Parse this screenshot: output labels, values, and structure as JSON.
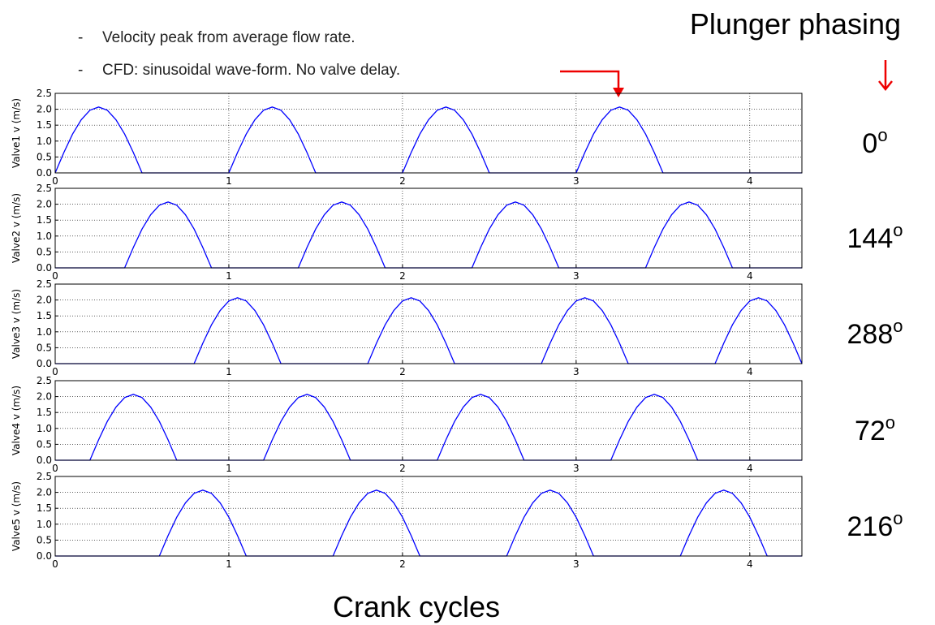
{
  "notes": [
    "Velocity peak from average flow rate.",
    "CFD: sinusoidal wave-form. No valve delay."
  ],
  "side_title": "Plunger phasing",
  "x_label": "Crank cycles",
  "chart_data": [
    {
      "type": "line",
      "y_label": "Valve1 v (m/s)",
      "phase": "0",
      "phase_unit": "o",
      "color": "#0000ff",
      "grid": true,
      "xlim": [
        0,
        4.3
      ],
      "ylim": [
        0,
        2.5
      ],
      "xticks": [
        0,
        1,
        2,
        3,
        4
      ],
      "yticks": [
        {
          "value": 0,
          "label": "0.0"
        },
        0.5,
        {
          "value": 1,
          "label": "1.0"
        },
        1.5,
        {
          "value": 2,
          "label": "2.0"
        },
        2.5
      ],
      "x": [
        0,
        0.05,
        0.1,
        0.15,
        0.2,
        0.25,
        0.3,
        0.35,
        0.4,
        0.45,
        0.5,
        0.55,
        0.6,
        0.65,
        0.7,
        0.75,
        0.8,
        0.85,
        0.9,
        0.95,
        1,
        1.05,
        1.1,
        1.15,
        1.2,
        1.25,
        1.3,
        1.35,
        1.4,
        1.45,
        1.5,
        1.55,
        1.6,
        1.65,
        1.7,
        1.75,
        1.8,
        1.85,
        1.9,
        1.95,
        2,
        2.05,
        2.1,
        2.15,
        2.2,
        2.25,
        2.3,
        2.35,
        2.4,
        2.45,
        2.5,
        2.55,
        2.6,
        2.65,
        2.7,
        2.75,
        2.8,
        2.85,
        2.9,
        2.95,
        3,
        3.05,
        3.1,
        3.15,
        3.2,
        3.25,
        3.3,
        3.35,
        3.4,
        3.45,
        3.5,
        3.55,
        3.6,
        3.65,
        3.7,
        3.75,
        3.8,
        3.85,
        3.9,
        3.95,
        4,
        4.05,
        4.1,
        4.15,
        4.2,
        4.25,
        4.3
      ],
      "values": [
        0,
        0.64,
        1.22,
        1.67,
        1.97,
        2.07,
        1.97,
        1.67,
        1.22,
        0.64,
        0,
        0,
        0,
        0,
        0,
        0,
        0,
        0,
        0,
        0,
        0,
        0.64,
        1.22,
        1.67,
        1.97,
        2.07,
        1.97,
        1.67,
        1.22,
        0.64,
        0,
        0,
        0,
        0,
        0,
        0,
        0,
        0,
        0,
        0,
        0,
        0.64,
        1.22,
        1.67,
        1.97,
        2.07,
        1.97,
        1.67,
        1.22,
        0.64,
        0,
        0,
        0,
        0,
        0,
        0,
        0,
        0,
        0,
        0,
        0,
        0.64,
        1.22,
        1.67,
        1.97,
        2.07,
        1.97,
        1.67,
        1.22,
        0.64,
        0,
        0,
        0,
        0,
        0,
        0,
        0,
        0,
        0,
        0,
        0,
        0,
        0,
        0,
        0,
        0,
        0
      ]
    },
    {
      "type": "line",
      "y_label": "Valve2 v (m/s)",
      "phase": "144",
      "phase_unit": "o",
      "color": "#0000ff",
      "grid": true,
      "xlim": [
        0,
        4.3
      ],
      "ylim": [
        0,
        2.5
      ],
      "xticks": [
        0,
        1,
        2,
        3,
        4
      ],
      "yticks": [
        {
          "value": 0,
          "label": "0.0"
        },
        0.5,
        {
          "value": 1,
          "label": "1.0"
        },
        1.5,
        {
          "value": 2,
          "label": "2.0"
        },
        2.5
      ],
      "x": [
        0,
        0.05,
        0.1,
        0.15,
        0.2,
        0.25,
        0.3,
        0.35,
        0.4,
        0.45,
        0.5,
        0.55,
        0.6,
        0.65,
        0.7,
        0.75,
        0.8,
        0.85,
        0.9,
        0.95,
        1,
        1.05,
        1.1,
        1.15,
        1.2,
        1.25,
        1.3,
        1.35,
        1.4,
        1.45,
        1.5,
        1.55,
        1.6,
        1.65,
        1.7,
        1.75,
        1.8,
        1.85,
        1.9,
        1.95,
        2,
        2.05,
        2.1,
        2.15,
        2.2,
        2.25,
        2.3,
        2.35,
        2.4,
        2.45,
        2.5,
        2.55,
        2.6,
        2.65,
        2.7,
        2.75,
        2.8,
        2.85,
        2.9,
        2.95,
        3,
        3.05,
        3.1,
        3.15,
        3.2,
        3.25,
        3.3,
        3.35,
        3.4,
        3.45,
        3.5,
        3.55,
        3.6,
        3.65,
        3.7,
        3.75,
        3.8,
        3.85,
        3.9,
        3.95,
        4,
        4.05,
        4.1,
        4.15,
        4.2,
        4.25,
        4.3
      ],
      "values": [
        0,
        0,
        0,
        0,
        0,
        0,
        0,
        0,
        0,
        0.64,
        1.22,
        1.67,
        1.97,
        2.07,
        1.97,
        1.67,
        1.22,
        0.64,
        0,
        0,
        0,
        0,
        0,
        0,
        0,
        0,
        0,
        0,
        0,
        0.64,
        1.22,
        1.67,
        1.97,
        2.07,
        1.97,
        1.67,
        1.22,
        0.64,
        0,
        0,
        0,
        0,
        0,
        0,
        0,
        0,
        0,
        0,
        0,
        0.64,
        1.22,
        1.67,
        1.97,
        2.07,
        1.97,
        1.67,
        1.22,
        0.64,
        0,
        0,
        0,
        0,
        0,
        0,
        0,
        0,
        0,
        0,
        0,
        0.64,
        1.22,
        1.67,
        1.97,
        2.07,
        1.97,
        1.67,
        1.22,
        0.64,
        0,
        0,
        0,
        0,
        0,
        0,
        0,
        0,
        0
      ]
    },
    {
      "type": "line",
      "y_label": "Valve3 v (m/s)",
      "phase": "288",
      "phase_unit": "o",
      "color": "#0000ff",
      "grid": true,
      "xlim": [
        0,
        4.3
      ],
      "ylim": [
        0,
        2.5
      ],
      "xticks": [
        0,
        1,
        2,
        3,
        4
      ],
      "yticks": [
        {
          "value": 0,
          "label": "0.0"
        },
        0.5,
        {
          "value": 1,
          "label": "1.0"
        },
        1.5,
        {
          "value": 2,
          "label": "2.0"
        },
        2.5
      ],
      "x": [
        0,
        0.05,
        0.1,
        0.15,
        0.2,
        0.25,
        0.3,
        0.35,
        0.4,
        0.45,
        0.5,
        0.55,
        0.6,
        0.65,
        0.7,
        0.75,
        0.8,
        0.85,
        0.9,
        0.95,
        1,
        1.05,
        1.1,
        1.15,
        1.2,
        1.25,
        1.3,
        1.35,
        1.4,
        1.45,
        1.5,
        1.55,
        1.6,
        1.65,
        1.7,
        1.75,
        1.8,
        1.85,
        1.9,
        1.95,
        2,
        2.05,
        2.1,
        2.15,
        2.2,
        2.25,
        2.3,
        2.35,
        2.4,
        2.45,
        2.5,
        2.55,
        2.6,
        2.65,
        2.7,
        2.75,
        2.8,
        2.85,
        2.9,
        2.95,
        3,
        3.05,
        3.1,
        3.15,
        3.2,
        3.25,
        3.3,
        3.35,
        3.4,
        3.45,
        3.5,
        3.55,
        3.6,
        3.65,
        3.7,
        3.75,
        3.8,
        3.85,
        3.9,
        3.95,
        4,
        4.05,
        4.1,
        4.15,
        4.2,
        4.25,
        4.3
      ],
      "values": [
        0,
        0,
        0,
        0,
        0,
        0,
        0,
        0,
        0,
        0,
        0,
        0,
        0,
        0,
        0,
        0,
        0,
        0.64,
        1.22,
        1.67,
        1.97,
        2.07,
        1.97,
        1.67,
        1.22,
        0.64,
        0,
        0,
        0,
        0,
        0,
        0,
        0,
        0,
        0,
        0,
        0,
        0.64,
        1.22,
        1.67,
        1.97,
        2.07,
        1.97,
        1.67,
        1.22,
        0.64,
        0,
        0,
        0,
        0,
        0,
        0,
        0,
        0,
        0,
        0,
        0,
        0.64,
        1.22,
        1.67,
        1.97,
        2.07,
        1.97,
        1.67,
        1.22,
        0.64,
        0,
        0,
        0,
        0,
        0,
        0,
        0,
        0,
        0,
        0,
        0,
        0.64,
        1.22,
        1.67,
        1.97,
        2.07,
        1.97,
        1.67,
        1.22,
        0.64,
        0
      ]
    },
    {
      "type": "line",
      "y_label": "Valve4 v (m/s)",
      "phase": "72",
      "phase_unit": "o",
      "color": "#0000ff",
      "grid": true,
      "xlim": [
        0,
        4.3
      ],
      "ylim": [
        0,
        2.5
      ],
      "xticks": [
        0,
        1,
        2,
        3,
        4
      ],
      "yticks": [
        {
          "value": 0,
          "label": "0.0"
        },
        0.5,
        {
          "value": 1,
          "label": "1.0"
        },
        1.5,
        {
          "value": 2,
          "label": "2.0"
        },
        2.5
      ],
      "x": [
        0,
        0.05,
        0.1,
        0.15,
        0.2,
        0.25,
        0.3,
        0.35,
        0.4,
        0.45,
        0.5,
        0.55,
        0.6,
        0.65,
        0.7,
        0.75,
        0.8,
        0.85,
        0.9,
        0.95,
        1,
        1.05,
        1.1,
        1.15,
        1.2,
        1.25,
        1.3,
        1.35,
        1.4,
        1.45,
        1.5,
        1.55,
        1.6,
        1.65,
        1.7,
        1.75,
        1.8,
        1.85,
        1.9,
        1.95,
        2,
        2.05,
        2.1,
        2.15,
        2.2,
        2.25,
        2.3,
        2.35,
        2.4,
        2.45,
        2.5,
        2.55,
        2.6,
        2.65,
        2.7,
        2.75,
        2.8,
        2.85,
        2.9,
        2.95,
        3,
        3.05,
        3.1,
        3.15,
        3.2,
        3.25,
        3.3,
        3.35,
        3.4,
        3.45,
        3.5,
        3.55,
        3.6,
        3.65,
        3.7,
        3.75,
        3.8,
        3.85,
        3.9,
        3.95,
        4,
        4.05,
        4.1,
        4.15,
        4.2,
        4.25,
        4.3
      ],
      "values": [
        0,
        0,
        0,
        0,
        0,
        0.64,
        1.22,
        1.67,
        1.97,
        2.07,
        1.97,
        1.67,
        1.22,
        0.64,
        0,
        0,
        0,
        0,
        0,
        0,
        0,
        0,
        0,
        0,
        0,
        0.64,
        1.22,
        1.67,
        1.97,
        2.07,
        1.97,
        1.67,
        1.22,
        0.64,
        0,
        0,
        0,
        0,
        0,
        0,
        0,
        0,
        0,
        0,
        0,
        0.64,
        1.22,
        1.67,
        1.97,
        2.07,
        1.97,
        1.67,
        1.22,
        0.64,
        0,
        0,
        0,
        0,
        0,
        0,
        0,
        0,
        0,
        0,
        0,
        0.64,
        1.22,
        1.67,
        1.97,
        2.07,
        1.97,
        1.67,
        1.22,
        0.64,
        0,
        0,
        0,
        0,
        0,
        0,
        0,
        0,
        0,
        0,
        0,
        0,
        0
      ]
    },
    {
      "type": "line",
      "y_label": "Valve5 v (m/s)",
      "phase": "216",
      "phase_unit": "o",
      "color": "#0000ff",
      "grid": true,
      "xlim": [
        0,
        4.3
      ],
      "ylim": [
        0,
        2.5
      ],
      "xticks": [
        0,
        1,
        2,
        3,
        4
      ],
      "yticks": [
        {
          "value": 0,
          "label": "0.0"
        },
        0.5,
        {
          "value": 1,
          "label": "1.0"
        },
        1.5,
        {
          "value": 2,
          "label": "2.0"
        },
        2.5
      ],
      "x": [
        0,
        0.05,
        0.1,
        0.15,
        0.2,
        0.25,
        0.3,
        0.35,
        0.4,
        0.45,
        0.5,
        0.55,
        0.6,
        0.65,
        0.7,
        0.75,
        0.8,
        0.85,
        0.9,
        0.95,
        1,
        1.05,
        1.1,
        1.15,
        1.2,
        1.25,
        1.3,
        1.35,
        1.4,
        1.45,
        1.5,
        1.55,
        1.6,
        1.65,
        1.7,
        1.75,
        1.8,
        1.85,
        1.9,
        1.95,
        2,
        2.05,
        2.1,
        2.15,
        2.2,
        2.25,
        2.3,
        2.35,
        2.4,
        2.45,
        2.5,
        2.55,
        2.6,
        2.65,
        2.7,
        2.75,
        2.8,
        2.85,
        2.9,
        2.95,
        3,
        3.05,
        3.1,
        3.15,
        3.2,
        3.25,
        3.3,
        3.35,
        3.4,
        3.45,
        3.5,
        3.55,
        3.6,
        3.65,
        3.7,
        3.75,
        3.8,
        3.85,
        3.9,
        3.95,
        4,
        4.05,
        4.1,
        4.15,
        4.2,
        4.25,
        4.3
      ],
      "values": [
        0,
        0,
        0,
        0,
        0,
        0,
        0,
        0,
        0,
        0,
        0,
        0,
        0,
        0.64,
        1.22,
        1.67,
        1.97,
        2.07,
        1.97,
        1.67,
        1.22,
        0.64,
        0,
        0,
        0,
        0,
        0,
        0,
        0,
        0,
        0,
        0,
        0,
        0.64,
        1.22,
        1.67,
        1.97,
        2.07,
        1.97,
        1.67,
        1.22,
        0.64,
        0,
        0,
        0,
        0,
        0,
        0,
        0,
        0,
        0,
        0,
        0,
        0.64,
        1.22,
        1.67,
        1.97,
        2.07,
        1.97,
        1.67,
        1.22,
        0.64,
        0,
        0,
        0,
        0,
        0,
        0,
        0,
        0,
        0,
        0,
        0,
        0.64,
        1.22,
        1.67,
        1.97,
        2.07,
        1.97,
        1.67,
        1.22,
        0.64,
        0,
        0,
        0,
        0,
        0
      ]
    }
  ]
}
